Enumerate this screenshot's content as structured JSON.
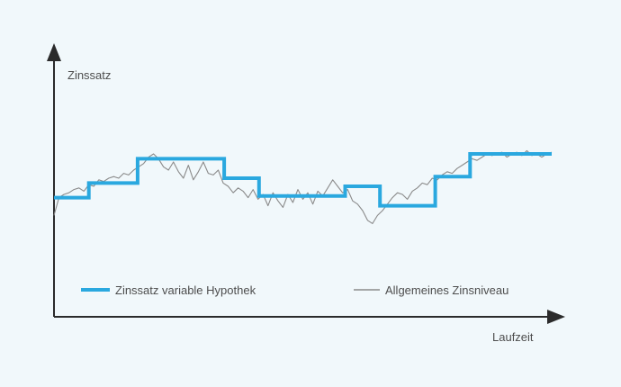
{
  "chart_data": {
    "type": "line",
    "title": "",
    "xlabel": "Laufzeit",
    "ylabel": "Zinssatz",
    "xlim": [
      0,
      100
    ],
    "ylim": [
      0,
      100
    ],
    "ticks_shown": false,
    "grid": false,
    "legend_position": "bottom-inside",
    "series": [
      {
        "name": "Zinssatz variable Hypothek",
        "color": "#2aa8df",
        "style": "step",
        "x": [
          0,
          7,
          7,
          16.8,
          16.8,
          34.2,
          34.2,
          41.2,
          41.2,
          58.5,
          58.5,
          65.5,
          65.5,
          76.6,
          76.6,
          83.6,
          83.6,
          100
        ],
        "values": [
          38,
          38,
          47,
          47,
          62,
          62,
          50,
          50,
          39,
          39,
          45,
          45,
          33,
          33,
          51,
          51,
          65,
          65
        ]
      },
      {
        "name": "Allgemeines Zinsniveau",
        "color": "#8a8a8a",
        "style": "line",
        "x": [
          0,
          1,
          2,
          3,
          4,
          5,
          6,
          7,
          8,
          9,
          10,
          11,
          12,
          13,
          14,
          15,
          16,
          17,
          18,
          19,
          20,
          21,
          22,
          23,
          24,
          25,
          26,
          27,
          28,
          29,
          30,
          31,
          32,
          33,
          34,
          35,
          36,
          37,
          38,
          39,
          40,
          41,
          42,
          43,
          44,
          45,
          46,
          47,
          48,
          49,
          50,
          51,
          52,
          53,
          54,
          55,
          56,
          57,
          58,
          59,
          60,
          61,
          62,
          63,
          64,
          65,
          66,
          67,
          68,
          69,
          70,
          71,
          72,
          73,
          74,
          75,
          76,
          77,
          78,
          79,
          80,
          81,
          82,
          83,
          84,
          85,
          86,
          87,
          88,
          89,
          90,
          91,
          92,
          93,
          94,
          95,
          96,
          97,
          98,
          99,
          100
        ],
        "values": [
          27,
          38,
          40,
          41,
          43,
          44,
          42,
          46,
          45,
          49,
          48,
          50,
          51,
          50,
          53,
          52,
          55,
          57,
          59,
          63,
          65,
          62,
          57,
          55,
          60,
          54,
          50,
          58,
          49,
          54,
          60,
          53,
          52,
          55,
          47,
          45,
          41,
          44,
          42,
          38,
          43,
          37,
          40,
          33,
          41,
          36,
          32,
          40,
          35,
          43,
          37,
          41,
          34,
          42,
          39,
          44,
          49,
          45,
          41,
          43,
          36,
          34,
          30,
          24,
          22,
          27,
          30,
          34,
          38,
          41,
          40,
          37,
          42,
          44,
          47,
          46,
          50,
          49,
          52,
          54,
          53,
          56,
          58,
          60,
          62,
          61,
          63,
          65,
          64,
          65,
          66,
          63,
          65,
          66,
          64,
          67,
          64,
          65,
          63,
          65,
          66
        ]
      }
    ]
  }
}
